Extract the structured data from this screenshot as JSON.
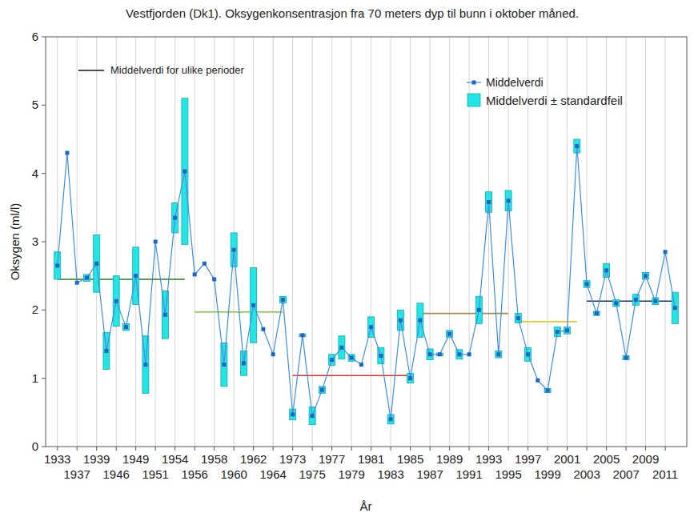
{
  "chart_data": {
    "type": "line",
    "title": "Vestfjorden (Dk1). Oksygenkonsentrasjon fra 70 meters dyp til bunn i oktober måned.",
    "x_label": "År",
    "y_label": "Oksygen (ml/l)",
    "categories": [
      "1933",
      null,
      "1937",
      null,
      "1939",
      null,
      "1946",
      null,
      "1949",
      null,
      "1951",
      null,
      "1954",
      null,
      "1956",
      null,
      "1958",
      null,
      "1960",
      null,
      "1962",
      null,
      "1964",
      null,
      "1973",
      null,
      "1975",
      null,
      "1977",
      null,
      "1979",
      null,
      "1981",
      null,
      "1983",
      null,
      "1985",
      null,
      "1987",
      null,
      "1989",
      null,
      "1991",
      null,
      "1993",
      null,
      "1995",
      null,
      "1997",
      null,
      "1999",
      null,
      "2001",
      null,
      "2003",
      null,
      "2005",
      null,
      "2007",
      null,
      "2009",
      null,
      "2011",
      null
    ],
    "series": [
      {
        "name": "Middelverdi",
        "color": "#3d8fe6",
        "marker": "square",
        "line_style": "solid",
        "values": [
          2.65,
          4.3,
          2.4,
          2.47,
          2.68,
          1.4,
          2.13,
          1.75,
          2.5,
          1.2,
          3.0,
          1.93,
          3.35,
          4.03,
          2.52,
          2.68,
          2.45,
          1.2,
          2.88,
          1.22,
          2.07,
          1.72,
          1.35,
          2.15,
          0.47,
          1.63,
          0.45,
          0.83,
          1.27,
          1.45,
          1.3,
          1.2,
          1.75,
          1.33,
          0.4,
          1.85,
          1.0,
          1.85,
          1.35,
          1.35,
          1.65,
          1.35,
          1.35,
          2.0,
          3.58,
          1.35,
          3.6,
          1.88,
          1.35,
          0.97,
          0.82,
          1.68,
          1.7,
          4.4,
          2.38,
          1.95,
          2.58,
          2.1,
          1.3,
          2.15,
          2.5,
          2.13,
          2.85,
          2.03
        ],
        "errors": [
          0.2,
          null,
          null,
          0.05,
          0.42,
          0.27,
          0.37,
          0.05,
          0.42,
          0.42,
          null,
          0.35,
          0.22,
          1.07,
          null,
          null,
          null,
          0.32,
          0.25,
          0.18,
          0.55,
          null,
          null,
          0.05,
          0.08,
          0.02,
          0.13,
          0.05,
          0.08,
          0.17,
          0.05,
          null,
          0.15,
          0.12,
          0.07,
          0.15,
          0.07,
          0.25,
          0.08,
          0.02,
          0.05,
          0.07,
          null,
          0.2,
          0.15,
          0.05,
          0.15,
          0.07,
          0.1,
          null,
          0.03,
          0.07,
          0.05,
          0.1,
          0.05,
          0.03,
          0.1,
          0.05,
          0.03,
          0.08,
          0.05,
          0.05,
          null,
          0.23
        ],
        "error_name": "Middelverdi ± standardfeil",
        "error_color": "#22e5e5"
      }
    ],
    "period_means": {
      "name": "Middelverdi for ulike perioder",
      "color": "#000000",
      "periods": [
        {
          "start": 0,
          "end": 13,
          "value": 2.45,
          "color": "#2e7d1e"
        },
        {
          "start": 14,
          "end": 23,
          "value": 1.97,
          "color": "#8fd14f"
        },
        {
          "start": 24,
          "end": 36,
          "value": 1.04,
          "color": "#e03030"
        },
        {
          "start": 37,
          "end": 46,
          "value": 1.95,
          "color": "#a08a50"
        },
        {
          "start": 47,
          "end": 53,
          "value": 1.83,
          "color": "#f2c12e"
        },
        {
          "start": 54,
          "end": 63,
          "value": 2.13,
          "color": "#1a2f8a"
        }
      ]
    },
    "ylim": [
      0,
      6
    ],
    "yticks": [
      0,
      1,
      2,
      3,
      4,
      5,
      6
    ],
    "grid": "x",
    "legend": "top-right"
  }
}
